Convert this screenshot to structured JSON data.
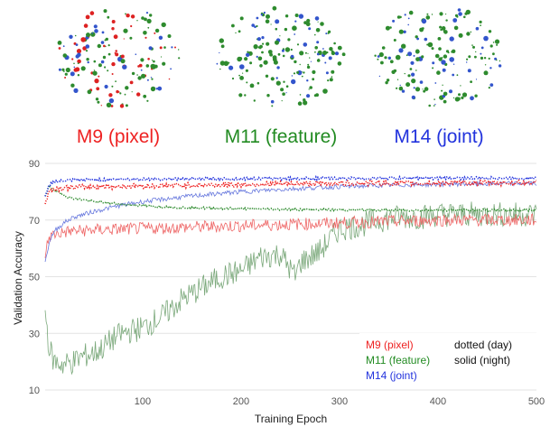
{
  "embeddings": [
    {
      "label": "M9 (pixel)",
      "color": "#ee2222",
      "dot_colors": [
        "#dd2222",
        "#2e8b2e",
        "#2e8b2e",
        "#3355cc"
      ]
    },
    {
      "label": "M11 (feature)",
      "color": "#228b22",
      "dot_colors": [
        "#2e8b2e",
        "#2e8b2e",
        "#2e8b2e",
        "#3355cc"
      ]
    },
    {
      "label": "M14 (joint)",
      "color": "#2233dd",
      "dot_colors": [
        "#2e8b2e",
        "#2e8b2e",
        "#2e8b2e",
        "#3355cc"
      ]
    }
  ],
  "chart_data": {
    "type": "line",
    "xlabel": "Training Epoch",
    "ylabel": "Validation Accuracy",
    "xlim": [
      1,
      500
    ],
    "ylim": [
      10,
      90
    ],
    "x_ticks": [
      100,
      200,
      300,
      400,
      500
    ],
    "y_ticks": [
      10,
      30,
      50,
      70,
      90
    ],
    "grid": "horizontal",
    "legend_position": "bottom-right",
    "legend_style_notes": [
      "dotted (day)",
      "solid (night)"
    ],
    "series": [
      {
        "name": "M9 (pixel)",
        "style": "dotted",
        "color": "#ee2222",
        "x": [
          1,
          5,
          10,
          25,
          50,
          100,
          150,
          200,
          250,
          300,
          350,
          400,
          450,
          500
        ],
        "y": [
          76,
          80,
          81,
          81.5,
          81.8,
          82,
          82.3,
          82.5,
          82.8,
          83,
          83,
          83,
          83.1,
          83.2
        ]
      },
      {
        "name": "M9 (pixel)",
        "style": "solid",
        "color": "#ee6666",
        "x": [
          1,
          5,
          10,
          25,
          50,
          100,
          150,
          200,
          250,
          300,
          350,
          400,
          450,
          500
        ],
        "y": [
          58,
          64,
          65,
          66,
          66.5,
          67,
          67.5,
          68,
          68.5,
          69,
          69.5,
          70,
          70,
          70
        ]
      },
      {
        "name": "M11 (feature)",
        "style": "dotted",
        "color": "#2e8b2e",
        "x": [
          1,
          5,
          10,
          25,
          50,
          100,
          150,
          200,
          250,
          300,
          350,
          400,
          450,
          500
        ],
        "y": [
          78,
          82,
          80.5,
          78,
          76.5,
          75,
          74.3,
          74,
          73.8,
          73.6,
          73.5,
          73.5,
          73.5,
          73.5
        ]
      },
      {
        "name": "M11 (feature)",
        "style": "solid",
        "color": "#7aa87a",
        "x": [
          1,
          5,
          10,
          20,
          30,
          40,
          50,
          60,
          70,
          80,
          90,
          100,
          120,
          140,
          160,
          180,
          200,
          220,
          240,
          255,
          260,
          280,
          300,
          320,
          340,
          360,
          380,
          400,
          420,
          440,
          460,
          480,
          500
        ],
        "y": [
          38,
          25,
          20,
          19,
          20,
          22,
          23,
          25,
          28,
          30,
          31,
          32,
          36,
          42,
          46,
          50,
          52,
          57,
          58,
          50,
          55,
          59,
          67,
          68,
          70,
          71,
          71,
          72,
          72,
          72,
          72,
          72,
          72
        ]
      },
      {
        "name": "M14 (joint)",
        "style": "dotted",
        "color": "#2233dd",
        "x": [
          1,
          5,
          10,
          25,
          50,
          100,
          150,
          200,
          250,
          300,
          350,
          400,
          450,
          500
        ],
        "y": [
          78,
          82.5,
          83.5,
          84,
          84.2,
          84.5,
          84.5,
          84.6,
          84.7,
          84.7,
          84.8,
          84.8,
          84.8,
          84.8
        ]
      },
      {
        "name": "M14 (joint)",
        "style": "solid",
        "color": "#6677dd",
        "x": [
          1,
          5,
          10,
          20,
          30,
          50,
          75,
          100,
          150,
          200,
          250,
          300,
          350,
          400,
          450,
          500
        ],
        "y": [
          55,
          62,
          66,
          69,
          71,
          73,
          75,
          76.5,
          78.5,
          80,
          81,
          81.8,
          82.3,
          82.6,
          82.8,
          83
        ]
      }
    ]
  }
}
